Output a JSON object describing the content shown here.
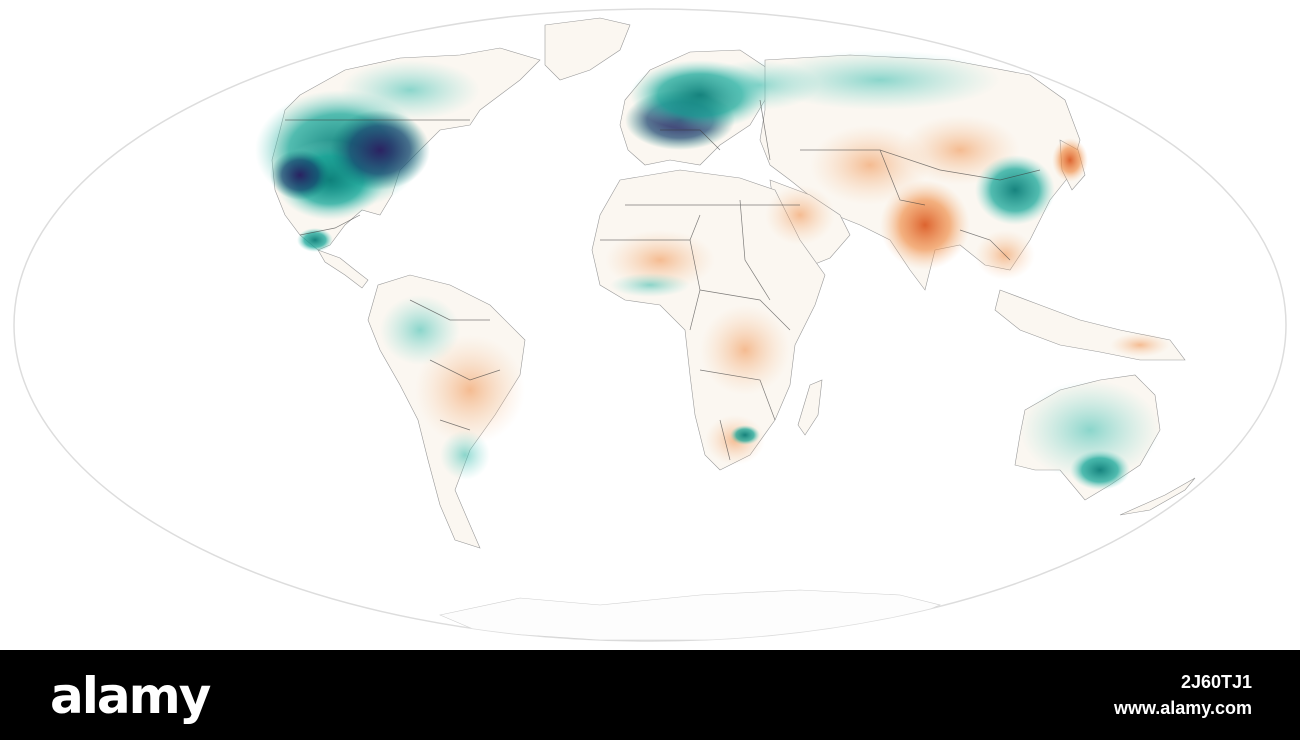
{
  "map": {
    "projection_shape": "ellipse",
    "colors": {
      "increase_light": "#7fd6cc",
      "increase_mid": "#1aa89a",
      "increase_strong": "#0b7d78",
      "increase_extreme": "#2a1a5e",
      "decrease_light": "#f6c49a",
      "decrease_mid": "#ef8a42",
      "decrease_strong": "#d9531a",
      "land": "#fbf7f1",
      "border": "#3a3a3a",
      "outline": "#dddddd"
    }
  },
  "watermark": {
    "logo": "alamy",
    "image_id": "2J60TJ1",
    "site": "www.alamy.com"
  }
}
